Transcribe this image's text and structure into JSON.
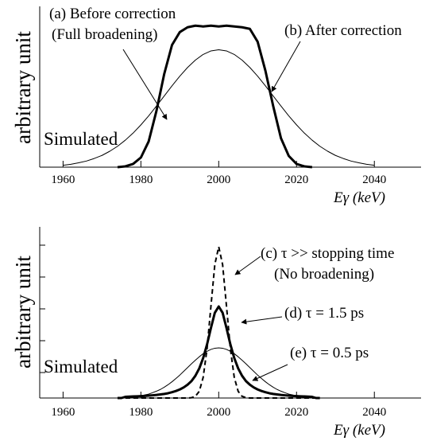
{
  "chart_data": [
    {
      "type": "line",
      "ylabel": "arbitrary unit",
      "xlabel": "Eγ (keV)",
      "annotations": [
        "(a) Before correction",
        "(Full broadening)",
        "(b) After correction",
        "Simulated"
      ],
      "xlim": [
        1954,
        2052
      ],
      "ylim": [
        0,
        1
      ],
      "xticks": [
        1960,
        1980,
        2000,
        2020,
        2040
      ],
      "x": [
        1960,
        1962,
        1964,
        1966,
        1968,
        1970,
        1972,
        1974,
        1976,
        1978,
        1980,
        1982,
        1984,
        1986,
        1988,
        1990,
        1992,
        1994,
        1996,
        1998,
        2000,
        2002,
        2004,
        2006,
        2008,
        2010,
        2012,
        2014,
        2016,
        2018,
        2020,
        2022,
        2024,
        2026,
        2028,
        2030,
        2032,
        2034,
        2036,
        2038,
        2040
      ],
      "series": [
        {
          "color": "#000000",
          "width": 1,
          "dash": false,
          "values": [
            0.012,
            0.018,
            0.027,
            0.038,
            0.054,
            0.073,
            0.099,
            0.13,
            0.168,
            0.212,
            0.263,
            0.319,
            0.38,
            0.443,
            0.506,
            0.566,
            0.62,
            0.666,
            0.701,
            0.723,
            0.73,
            0.723,
            0.701,
            0.666,
            0.62,
            0.566,
            0.506,
            0.443,
            0.38,
            0.319,
            0.263,
            0.212,
            0.168,
            0.13,
            0.099,
            0.073,
            0.054,
            0.038,
            0.027,
            0.018,
            0.012
          ]
        },
        {
          "color": "#000000",
          "width": 3,
          "dash": false,
          "values": [
            null,
            null,
            null,
            null,
            null,
            null,
            null,
            0,
            0.005,
            0.02,
            0.06,
            0.16,
            0.35,
            0.58,
            0.76,
            0.84,
            0.87,
            0.88,
            0.875,
            0.88,
            0.875,
            0.88,
            0.875,
            0.87,
            0.86,
            0.78,
            0.6,
            0.38,
            0.18,
            0.07,
            0.02,
            0.005,
            0,
            null,
            null,
            null,
            null,
            null,
            null,
            null,
            null
          ]
        }
      ]
    },
    {
      "type": "line",
      "ylabel": "arbitrary unit",
      "xlabel": "Eγ (keV)",
      "annotations": [
        "(c) τ >> stopping time",
        "(No broadening)",
        "(d) τ = 1.5 ps",
        "(e) τ = 0.5 ps",
        "Simulated"
      ],
      "xlim": [
        1954,
        2052
      ],
      "ylim": [
        0,
        1
      ],
      "xticks": [
        1960,
        1980,
        2000,
        2020,
        2040
      ],
      "x": [
        1974,
        1975,
        1976,
        1977,
        1978,
        1979,
        1980,
        1981,
        1982,
        1983,
        1984,
        1985,
        1986,
        1987,
        1988,
        1989,
        1990,
        1991,
        1992,
        1993,
        1994,
        1995,
        1996,
        1997,
        1998,
        1999,
        2000,
        2001,
        2002,
        2003,
        2004,
        2005,
        2006,
        2007,
        2008,
        2009,
        2010,
        2011,
        2012,
        2013,
        2014,
        2015,
        2016,
        2017,
        2018,
        2019,
        2020,
        2021,
        2022,
        2023,
        2024,
        2025,
        2026
      ],
      "series": [
        {
          "color": "#000000",
          "width": 2,
          "dash": true,
          "values": [
            0,
            0,
            0,
            0,
            0,
            0,
            0,
            0,
            0,
            0,
            0,
            0,
            0,
            0,
            0,
            0,
            0,
            0,
            0,
            0.002,
            0.01,
            0.039,
            0.12,
            0.287,
            0.536,
            0.78,
            0.884,
            0.78,
            0.536,
            0.287,
            0.12,
            0.039,
            0.01,
            0.002,
            0,
            0,
            0,
            0,
            0,
            0,
            0,
            0,
            0,
            0,
            0,
            0,
            0,
            0,
            0,
            0,
            0,
            0,
            0
          ]
        },
        {
          "color": "#000000",
          "width": 3,
          "dash": false,
          "values": [
            0,
            0,
            0.007,
            0.008,
            0.009,
            0.01,
            0.011,
            0.012,
            0.014,
            0.016,
            0.018,
            0.021,
            0.024,
            0.028,
            0.034,
            0.041,
            0.05,
            0.062,
            0.078,
            0.099,
            0.13,
            0.173,
            0.233,
            0.313,
            0.409,
            0.498,
            0.535,
            0.498,
            0.409,
            0.313,
            0.233,
            0.173,
            0.13,
            0.099,
            0.078,
            0.062,
            0.05,
            0.041,
            0.034,
            0.028,
            0.024,
            0.021,
            0.018,
            0.016,
            0.014,
            0.012,
            0.011,
            0.01,
            0.009,
            0.008,
            0.007,
            0,
            0
          ]
        },
        {
          "color": "#000000",
          "width": 1,
          "dash": false,
          "values": [
            0.001,
            0.002,
            0.003,
            0.005,
            0.007,
            0.009,
            0.013,
            0.018,
            0.023,
            0.031,
            0.04,
            0.05,
            0.063,
            0.078,
            0.095,
            0.114,
            0.134,
            0.156,
            0.178,
            0.2,
            0.221,
            0.241,
            0.259,
            0.273,
            0.284,
            0.291,
            0.293,
            0.291,
            0.284,
            0.273,
            0.259,
            0.241,
            0.221,
            0.2,
            0.178,
            0.156,
            0.134,
            0.114,
            0.095,
            0.078,
            0.063,
            0.05,
            0.04,
            0.031,
            0.023,
            0.018,
            0.013,
            0.009,
            0.007,
            0.005,
            0.003,
            0.002,
            0.001
          ]
        }
      ]
    }
  ]
}
